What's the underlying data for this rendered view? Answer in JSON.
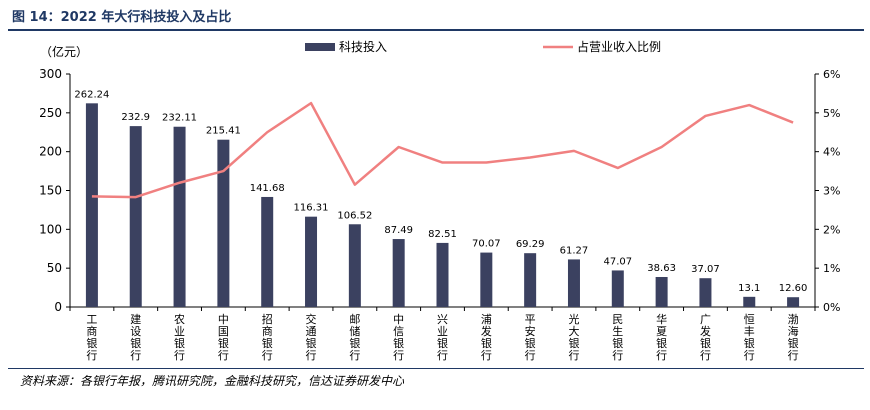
{
  "figure_title": "图 14：2022 年大行科技投入及占比",
  "source_note": "资料来源：各银行年报，腾讯研究院，金融科技研究，信达证券研发中心",
  "colors": {
    "bar": "#3b4160",
    "line": "#f08080",
    "rule": "#1f3864",
    "axis": "#000000"
  },
  "chart_data": {
    "type": "bar+line",
    "title": "",
    "y_left_unit": "（亿元）",
    "y_left_lim": [
      0,
      300
    ],
    "y_left_ticks": [
      "0",
      "50",
      "100",
      "150",
      "200",
      "250",
      "300"
    ],
    "y_right_lim": [
      0,
      6
    ],
    "y_right_ticks": [
      "0%",
      "1%",
      "2%",
      "3%",
      "4%",
      "5%",
      "6%"
    ],
    "legend_position": "top",
    "grid": false,
    "categories": [
      "工商银行",
      "建设银行",
      "农业银行",
      "中国银行",
      "招商银行",
      "交通银行",
      "邮储银行",
      "中信银行",
      "兴业银行",
      "浦发银行",
      "平安银行",
      "光大银行",
      "民生银行",
      "华夏银行",
      "广发银行",
      "恒丰银行",
      "渤海银行"
    ],
    "series": [
      {
        "name": "科技投入",
        "kind": "bar",
        "axis": "left",
        "values": [
          262.24,
          232.9,
          232.11,
          215.41,
          141.68,
          116.31,
          106.52,
          87.49,
          82.51,
          70.07,
          69.29,
          61.27,
          47.07,
          38.63,
          37.07,
          13.1,
          12.6
        ],
        "labels": [
          "262.24",
          "232.9",
          "232.11",
          "215.41",
          "141.68",
          "116.31",
          "106.52",
          "87.49",
          "82.51",
          "70.07",
          "69.29",
          "61.27",
          "47.07",
          "38.63",
          "37.07",
          "13.1",
          "12.60"
        ]
      },
      {
        "name": "占营业收入比例",
        "kind": "line",
        "axis": "right",
        "values": [
          2.85,
          2.83,
          3.2,
          3.5,
          4.5,
          5.25,
          3.15,
          4.12,
          3.72,
          3.72,
          3.85,
          4.02,
          3.58,
          4.12,
          4.92,
          5.2,
          4.75
        ]
      }
    ]
  }
}
